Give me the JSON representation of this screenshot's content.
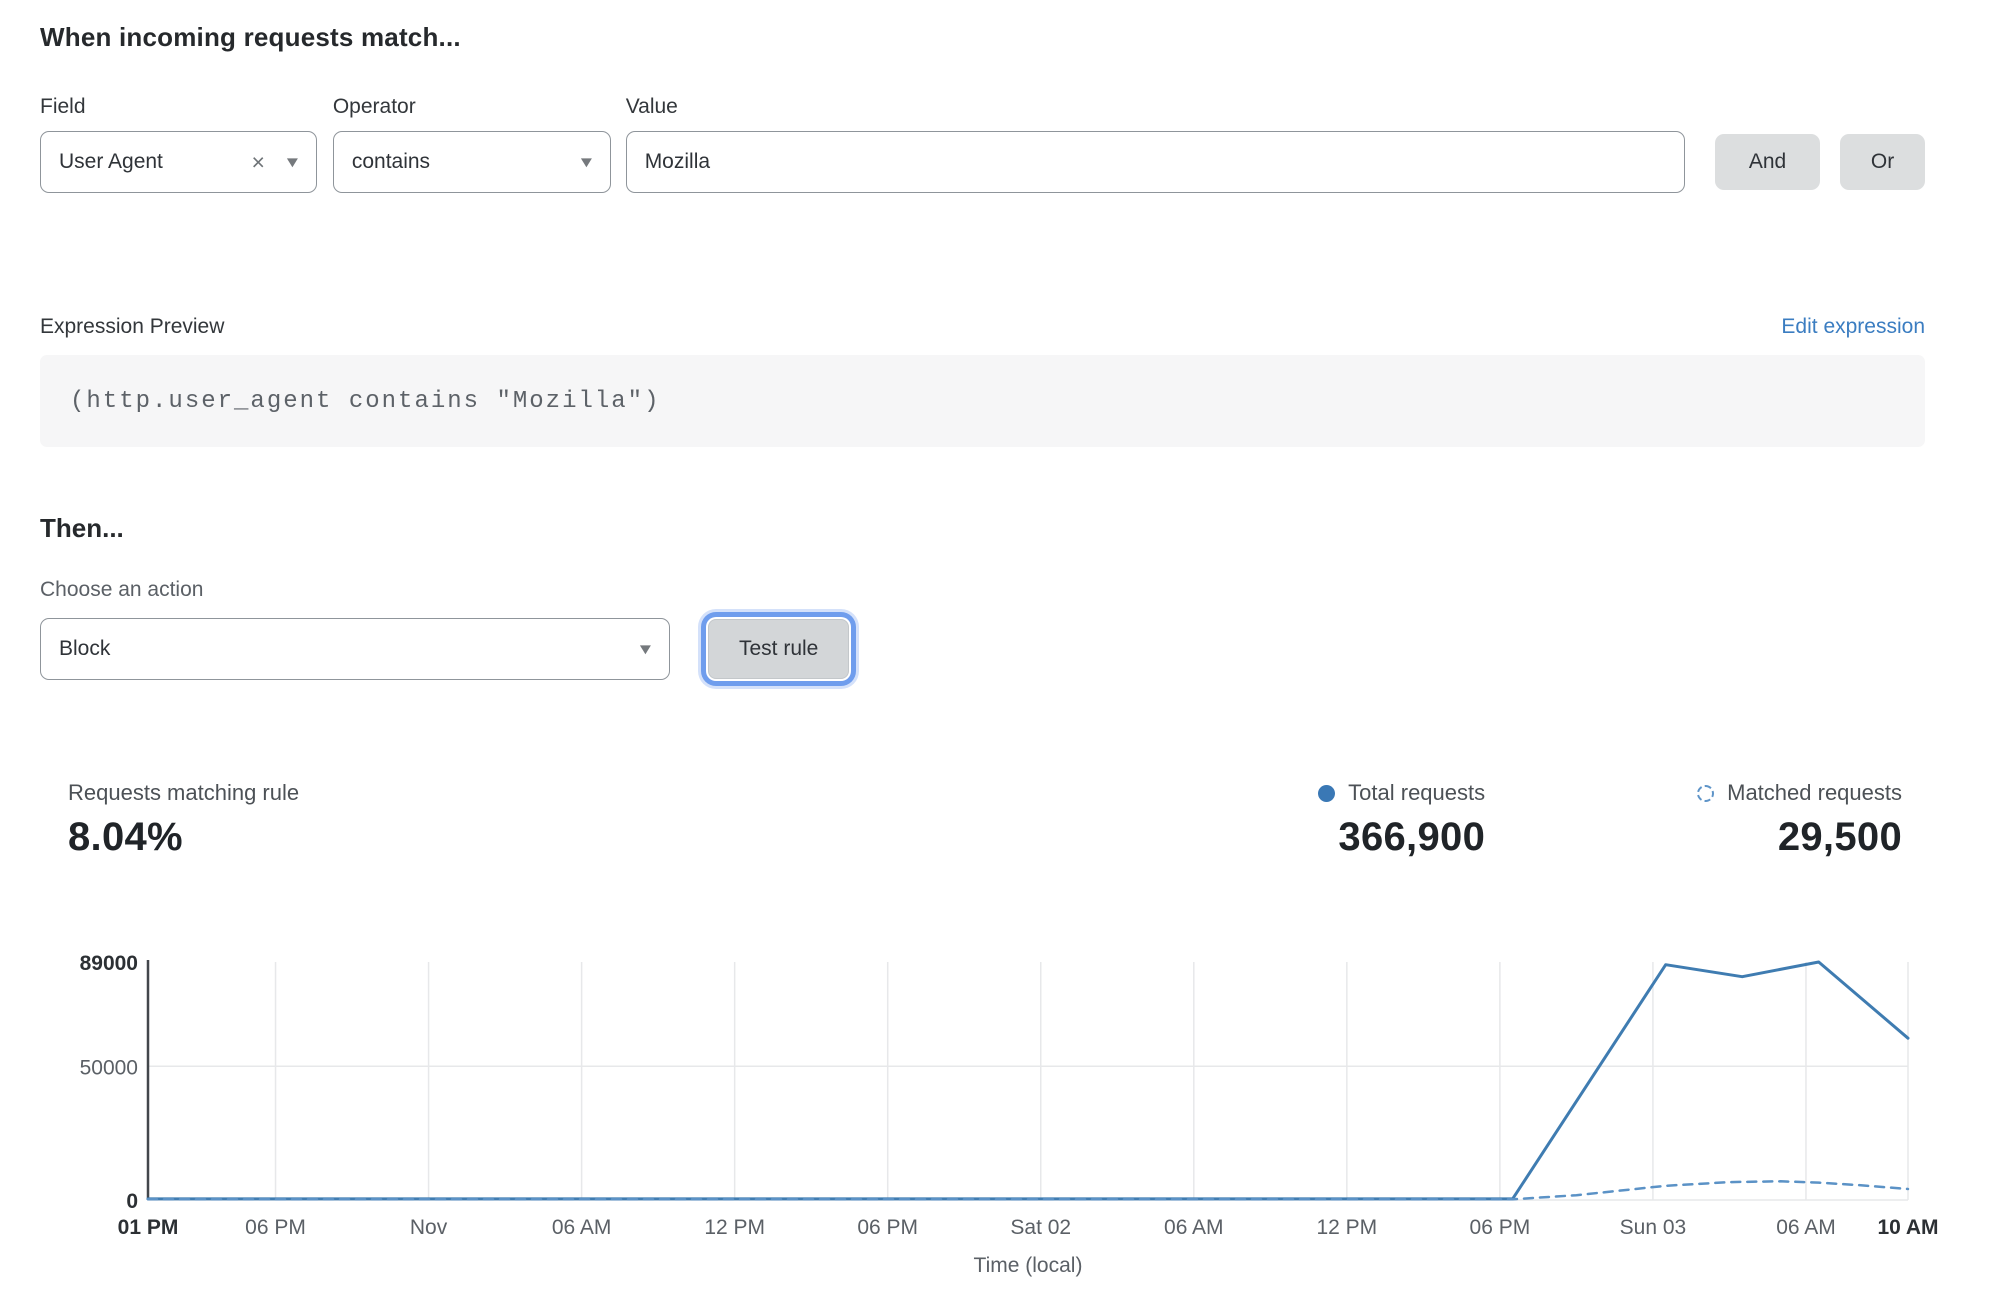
{
  "header": {
    "title": "When incoming requests match..."
  },
  "condition": {
    "field_label": "Field",
    "field_value": "User Agent",
    "operator_label": "Operator",
    "operator_value": "contains",
    "value_label": "Value",
    "value_text": "Mozilla",
    "and_button": "And",
    "or_button": "Or",
    "remove_icon": "×",
    "dropdown_icon": "▼"
  },
  "expression": {
    "label": "Expression Preview",
    "edit_link": "Edit expression",
    "code": "(http.user_agent contains \"Mozilla\")"
  },
  "action": {
    "heading": "Then...",
    "choose_label": "Choose an action",
    "selected": "Block",
    "dropdown_icon": "▼",
    "test_button": "Test rule"
  },
  "stats": {
    "matching_label": "Requests matching rule",
    "matching_value": "8.04%",
    "total_label": "Total requests",
    "total_value": "366,900",
    "matched_label": "Matched requests",
    "matched_value": "29,500"
  },
  "colors": {
    "line_total": "#3f7cb1",
    "line_matched": "#5b92c6",
    "legend_dot": "#3a78b5",
    "link_blue": "#3b7dc1",
    "focus_ring": "#6f9ded",
    "grid": "#e7e8ea",
    "axis": "#43474c",
    "tick_bold": "#2c3034",
    "tick_normal": "#5b6066"
  },
  "chart_data": {
    "type": "line",
    "title": "",
    "xlabel": "Time (local)",
    "ylabel": "",
    "ylim": [
      0,
      89000
    ],
    "legend_position": "top-right",
    "y_ticks": [
      {
        "value": 0,
        "label": "0",
        "bold": true
      },
      {
        "value": 50000,
        "label": "50000",
        "bold": false
      },
      {
        "value": 89000,
        "label": "89000",
        "bold": true
      }
    ],
    "x_total_hours": 69,
    "x_ticks": [
      {
        "hour": 0,
        "label": "01 PM",
        "bold": true
      },
      {
        "hour": 5,
        "label": "06 PM",
        "bold": false
      },
      {
        "hour": 11,
        "label": "Nov",
        "bold": false
      },
      {
        "hour": 17,
        "label": "06 AM",
        "bold": false
      },
      {
        "hour": 23,
        "label": "12 PM",
        "bold": false
      },
      {
        "hour": 29,
        "label": "06 PM",
        "bold": false
      },
      {
        "hour": 35,
        "label": "Sat 02",
        "bold": false
      },
      {
        "hour": 41,
        "label": "06 AM",
        "bold": false
      },
      {
        "hour": 47,
        "label": "12 PM",
        "bold": false
      },
      {
        "hour": 53,
        "label": "06 PM",
        "bold": false
      },
      {
        "hour": 59,
        "label": "Sun 03",
        "bold": false
      },
      {
        "hour": 65,
        "label": "06 AM",
        "bold": false
      },
      {
        "hour": 69,
        "label": "10 AM",
        "bold": true
      }
    ],
    "grid": {
      "vertical_at_ticks": true,
      "horizontal_at": [
        50000
      ],
      "baseline": true
    },
    "series": [
      {
        "name": "Total requests",
        "style": "solid",
        "color": "#3f7cb1",
        "points": [
          [
            0,
            400
          ],
          [
            10,
            400
          ],
          [
            20,
            400
          ],
          [
            30,
            400
          ],
          [
            40,
            400
          ],
          [
            50,
            400
          ],
          [
            53.5,
            400
          ],
          [
            59.5,
            88000
          ],
          [
            62.5,
            83500
          ],
          [
            65.5,
            89000
          ],
          [
            69,
            60500
          ]
        ]
      },
      {
        "name": "Matched requests",
        "style": "dashed",
        "color": "#5b92c6",
        "points": [
          [
            0,
            250
          ],
          [
            10,
            250
          ],
          [
            20,
            250
          ],
          [
            30,
            250
          ],
          [
            40,
            250
          ],
          [
            50,
            250
          ],
          [
            53.5,
            250
          ],
          [
            56,
            1800
          ],
          [
            59.5,
            5300
          ],
          [
            62,
            6700
          ],
          [
            64,
            7000
          ],
          [
            65.5,
            6500
          ],
          [
            67,
            5600
          ],
          [
            69,
            4100
          ]
        ]
      }
    ]
  }
}
